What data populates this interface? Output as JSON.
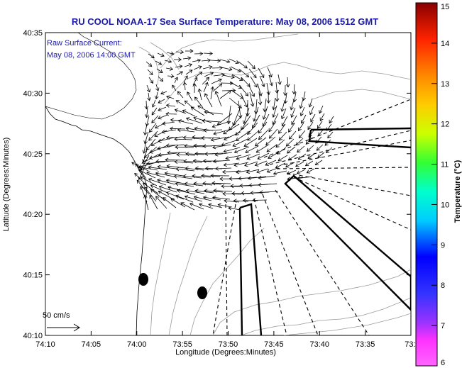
{
  "chart_data": {
    "type": "vector-field map",
    "title": "RU COOL  NOAA-17  Sea Surface Temperature:  May 08, 2006 1512 GMT",
    "inset_label_1": "Raw Surface Current:",
    "inset_label_2": "May 08, 2006 14:00 GMT",
    "scale_label": "50 cm/s",
    "xlabel": "Longitude (Degrees:Minutes)",
    "ylabel": "Latitude (Degrees:Minutes)",
    "x_ticks": [
      "74:10",
      "74:05",
      "74:00",
      "73:55",
      "73:50",
      "73:45",
      "73:40",
      "73:35",
      "73:3"
    ],
    "y_ticks": [
      "40:35",
      "40:30",
      "40:25",
      "40:20",
      "40:15",
      "40:10"
    ],
    "colorbar": {
      "label": "Temperature (°C)",
      "min": 6,
      "max": 15,
      "ticks": [
        "15",
        "14",
        "13",
        "12",
        "11",
        "10",
        "9",
        "8",
        "7",
        "6"
      ]
    },
    "colors": {
      "title": "#1a1aa6",
      "land_and_contours": "#9a9a9a",
      "vectors": "#000000"
    }
  }
}
